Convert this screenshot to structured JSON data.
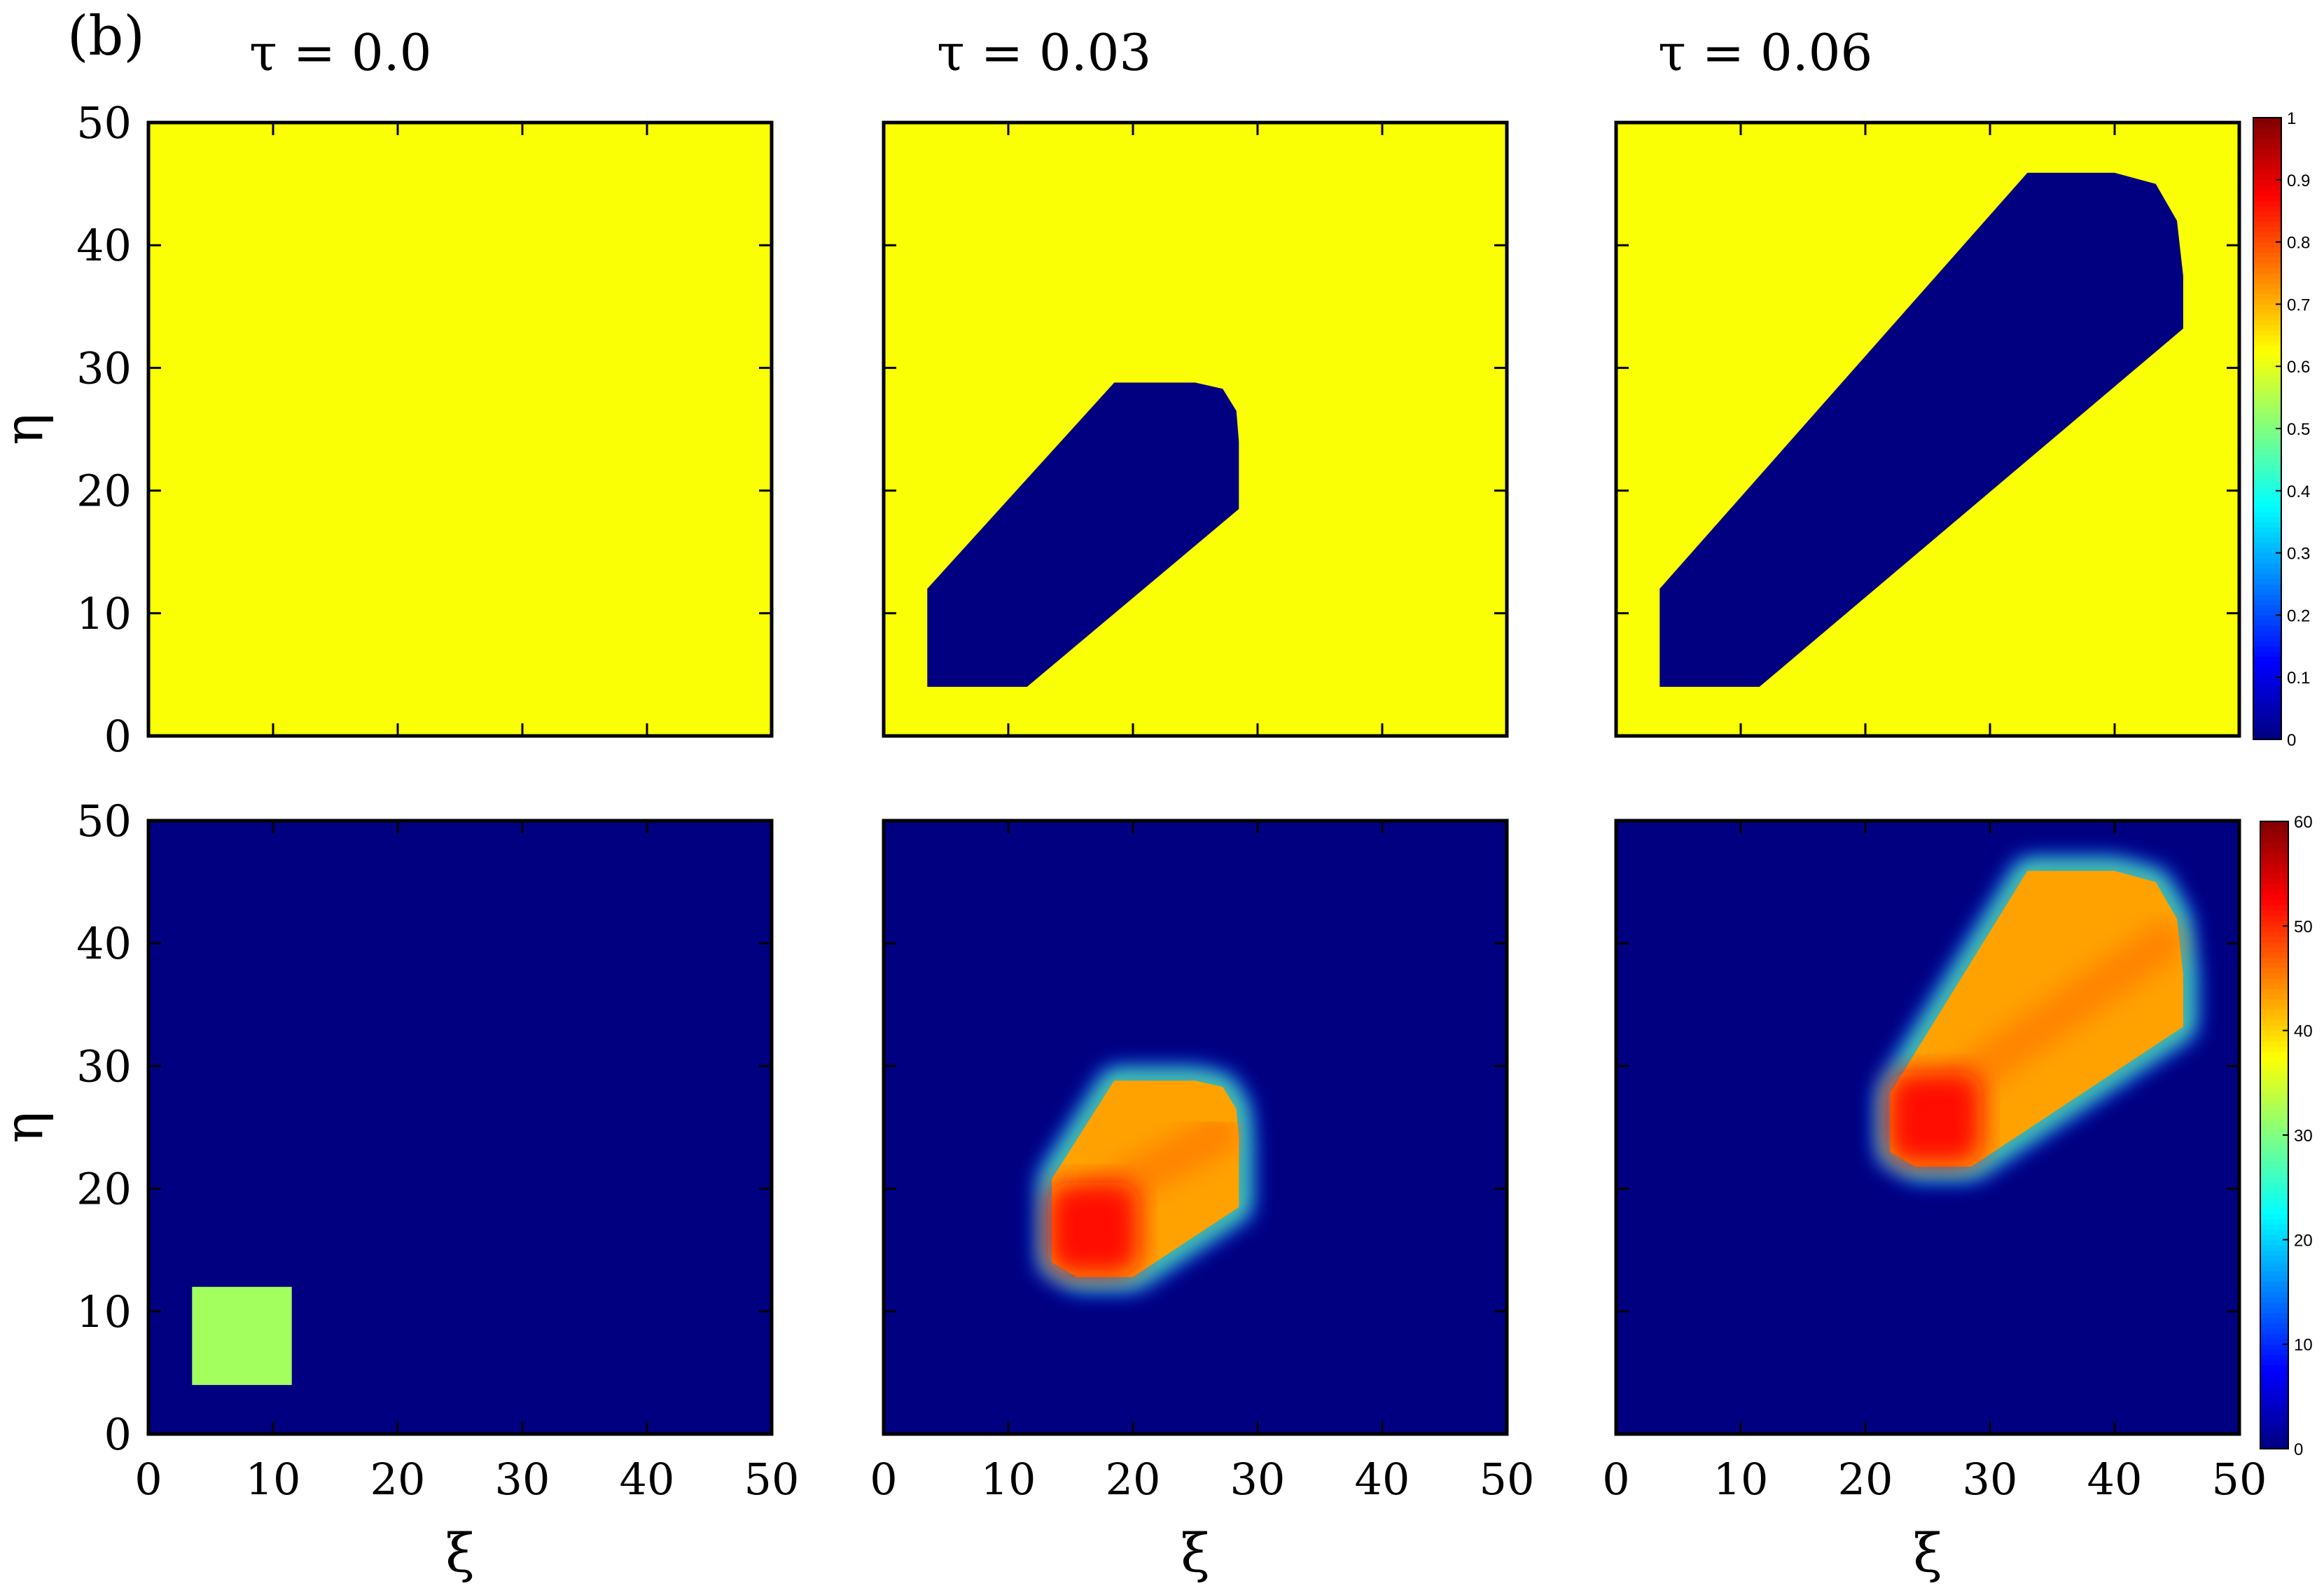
{
  "figure": {
    "panel_label": "(b)",
    "column_titles": [
      "τ  = 0.0",
      "τ = 0.03",
      "τ = 0.06"
    ]
  },
  "chart_data": {
    "type": "heatmap",
    "panel_label": "(b)",
    "xlabel": "ξ",
    "ylabel": "η",
    "xlim": [
      0,
      50
    ],
    "ylim": [
      0,
      50
    ],
    "x_ticks": [
      "0",
      "10",
      "20",
      "30",
      "40",
      "50"
    ],
    "y_ticks": [
      "0",
      "10",
      "20",
      "30",
      "40",
      "50"
    ],
    "colormap": "jet",
    "rows": [
      {
        "colorbar": {
          "min": 0,
          "max": 1,
          "ticks": [
            "0",
            "0.1",
            "0.2",
            "0.3",
            "0.4",
            "0.5",
            "0.6",
            "0.7",
            "0.8",
            "0.9",
            "1"
          ]
        },
        "background_value": 0.62,
        "panels": [
          {
            "title": "τ  = 0.0",
            "region": []
          },
          {
            "title": "τ = 0.03",
            "region_value": 0,
            "region": [
              [
                3.5,
                4
              ],
              [
                11.5,
                4
              ],
              [
                28.5,
                18.5
              ],
              [
                28.5,
                24
              ],
              [
                28.3,
                26.5
              ],
              [
                27.2,
                28.3
              ],
              [
                25,
                28.8
              ],
              [
                18.5,
                28.8
              ],
              [
                3.5,
                12
              ]
            ]
          },
          {
            "title": "τ = 0.06",
            "region_value": 0,
            "region": [
              [
                3.5,
                4
              ],
              [
                11.5,
                4
              ],
              [
                45.5,
                33.2
              ],
              [
                45.5,
                37.5
              ],
              [
                45,
                42
              ],
              [
                43.3,
                45
              ],
              [
                40,
                45.9
              ],
              [
                33,
                45.9
              ],
              [
                3.5,
                12
              ]
            ]
          }
        ]
      },
      {
        "colorbar": {
          "min": 0,
          "max": 60,
          "ticks": [
            "0",
            "10",
            "20",
            "30",
            "40",
            "50",
            "60"
          ]
        },
        "background_value": 0,
        "panels": [
          {
            "title": "τ  = 0.0",
            "source": {
              "xrange": [
                3.5,
                11.5
              ],
              "yrange": [
                4,
                12
              ],
              "value": 32
            }
          },
          {
            "title": "τ = 0.03",
            "outer_value": 43,
            "outer": [
              [
                13.5,
                14
              ],
              [
                15.5,
                12.8
              ],
              [
                20,
                12.8
              ],
              [
                28.5,
                18.5
              ],
              [
                28.5,
                24
              ],
              [
                28.3,
                26.5
              ],
              [
                27.2,
                28.3
              ],
              [
                25,
                28.8
              ],
              [
                18.5,
                28.8
              ],
              [
                13.5,
                20.8
              ]
            ],
            "peak_value": 52,
            "peak": {
              "xrange": [
                13.2,
                20.5
              ],
              "yrange": [
                13,
                20.5
              ]
            }
          },
          {
            "title": "τ = 0.06",
            "outer_value": 43,
            "outer": [
              [
                22,
                23
              ],
              [
                24,
                21.8
              ],
              [
                28.5,
                21.8
              ],
              [
                45.5,
                33.2
              ],
              [
                45.5,
                37.5
              ],
              [
                45,
                42
              ],
              [
                43.3,
                45
              ],
              [
                40,
                45.9
              ],
              [
                33,
                45.9
              ],
              [
                22,
                27.8
              ]
            ],
            "peak_value": 52,
            "peak": {
              "xrange": [
                21.8,
                29.3
              ],
              "yrange": [
                22,
                29.5
              ]
            }
          }
        ]
      }
    ]
  }
}
